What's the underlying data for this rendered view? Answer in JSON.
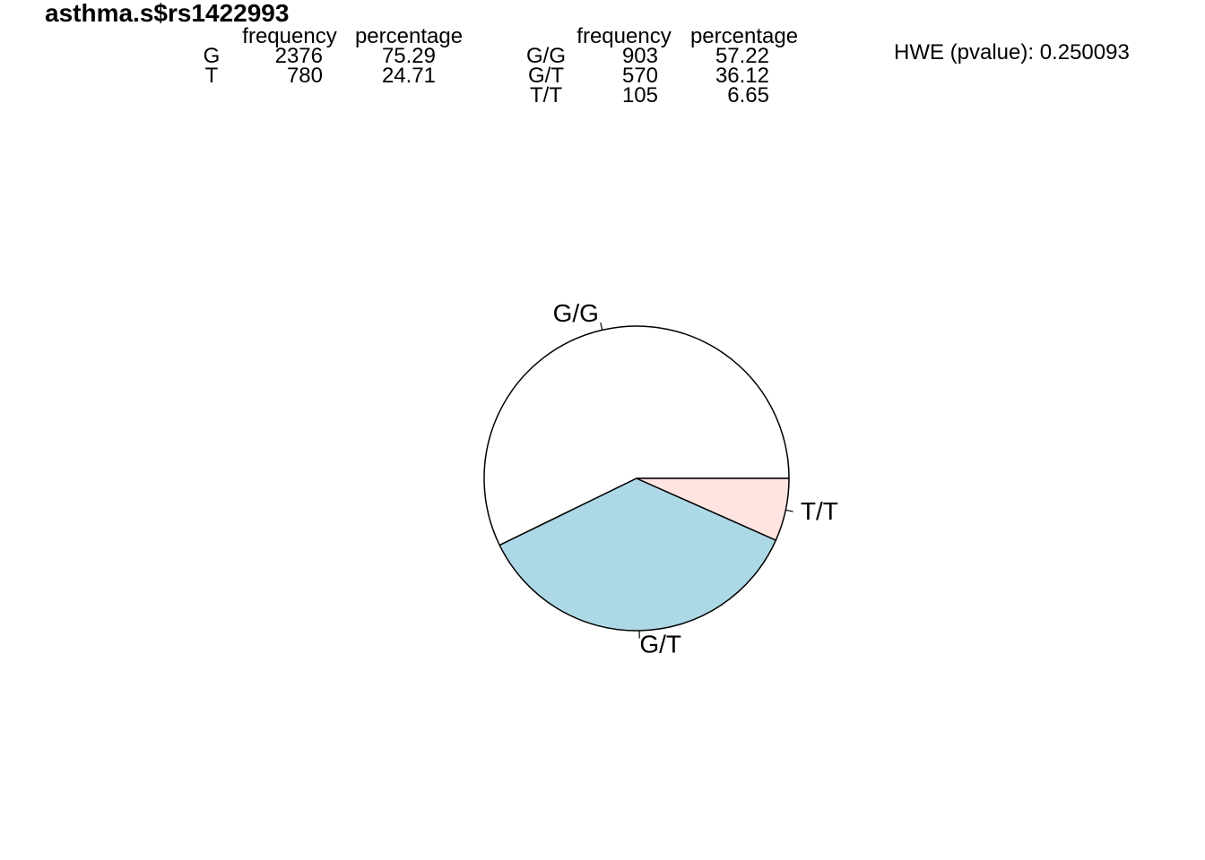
{
  "title": "asthma.s$rs1422993",
  "allele_table": {
    "headers": [
      "frequency",
      "percentage"
    ],
    "rows": [
      {
        "label": "G",
        "frequency": "2376",
        "percentage": "75.29"
      },
      {
        "label": "T",
        "frequency": "780",
        "percentage": "24.71"
      }
    ]
  },
  "genotype_table": {
    "headers": [
      "frequency",
      "percentage"
    ],
    "rows": [
      {
        "label": "G/G",
        "frequency": "903",
        "percentage": "57.22"
      },
      {
        "label": "G/T",
        "frequency": "570",
        "percentage": "36.12"
      },
      {
        "label": "T/T",
        "frequency": "105",
        "percentage": "6.65"
      }
    ]
  },
  "hwe": "HWE (pvalue): 0.250093",
  "chart_data": {
    "type": "pie",
    "title": "asthma.s$rs1422993",
    "categories": [
      "G/G",
      "G/T",
      "T/T"
    ],
    "values": [
      903,
      570,
      105
    ],
    "colors": [
      "#ffffff",
      "#add8e6",
      "#ffe4e1"
    ],
    "start": "3 o'clock",
    "direction": "counter-clockwise"
  }
}
